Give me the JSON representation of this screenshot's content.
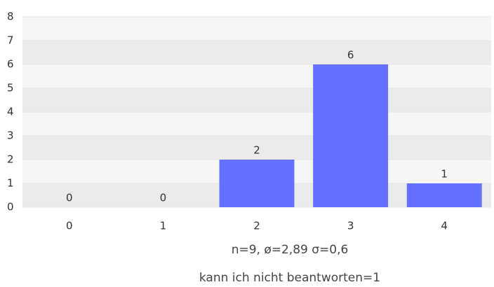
{
  "chart_data": {
    "type": "bar",
    "categories": [
      "0",
      "1",
      "2",
      "3",
      "4"
    ],
    "values": [
      0,
      0,
      2,
      6,
      1
    ],
    "color": "#6470ff",
    "ylim": [
      0,
      8
    ],
    "yticks": [
      0,
      1,
      2,
      3,
      4,
      5,
      6,
      7,
      8
    ],
    "grid": true,
    "annotations": [
      "n=9, ø=2,89 σ=0,6",
      "kann ich nicht beantworten=1"
    ]
  }
}
